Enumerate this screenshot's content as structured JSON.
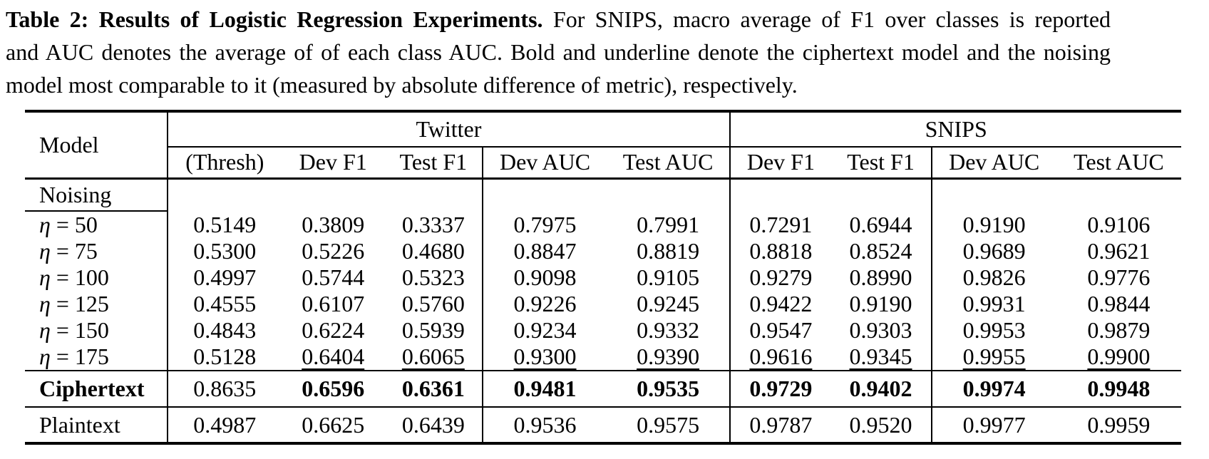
{
  "colors": {
    "text": "#000000",
    "background": "#ffffff",
    "rule": "#000000"
  },
  "caption": {
    "title_bold": "Table 2: Results of Logistic Regression Experiments.",
    "line1_rest": "For SNIPS, macro average of F1 over classes is reported",
    "line2": "and AUC denotes the average of of each class AUC. Bold and underline denote the ciphertext model and the noising",
    "line3": "model most comparable to it (measured by absolute difference of metric), respectively."
  },
  "table": {
    "corner_header": "Model",
    "groups": [
      {
        "label": "Twitter",
        "colspan": 5
      },
      {
        "label": "SNIPS",
        "colspan": 4
      }
    ],
    "columns": [
      "(Thresh)",
      "Dev F1",
      "Test F1",
      "Dev AUC",
      "Test AUC",
      "Dev F1",
      "Test F1",
      "Dev AUC",
      "Test AUC"
    ],
    "section_header": "Noising",
    "rows": [
      {
        "label_math": "η",
        "label_rest": " = 50",
        "values": [
          "0.5149",
          "0.3809",
          "0.3337",
          "0.7975",
          "0.7991",
          "0.7291",
          "0.6944",
          "0.9190",
          "0.9106"
        ]
      },
      {
        "label_math": "η",
        "label_rest": " = 75",
        "values": [
          "0.5300",
          "0.5226",
          "0.4680",
          "0.8847",
          "0.8819",
          "0.8818",
          "0.8524",
          "0.9689",
          "0.9621"
        ]
      },
      {
        "label_math": "η",
        "label_rest": " = 100",
        "values": [
          "0.4997",
          "0.5744",
          "0.5323",
          "0.9098",
          "0.9105",
          "0.9279",
          "0.8990",
          "0.9826",
          "0.9776"
        ]
      },
      {
        "label_math": "η",
        "label_rest": " = 125",
        "values": [
          "0.4555",
          "0.6107",
          "0.5760",
          "0.9226",
          "0.9245",
          "0.9422",
          "0.9190",
          "0.9931",
          "0.9844"
        ]
      },
      {
        "label_math": "η",
        "label_rest": " = 150",
        "values": [
          "0.4843",
          "0.6224",
          "0.5939",
          "0.9234",
          "0.9332",
          "0.9547",
          "0.9303",
          "0.9953",
          "0.9879"
        ]
      },
      {
        "label_math": "η",
        "label_rest": " = 175",
        "values": [
          "0.5128",
          "0.6404",
          "0.6065",
          "0.9300",
          "0.9390",
          "0.9616",
          "0.9345",
          "0.9955",
          "0.9900"
        ],
        "styles": [
          "",
          "u",
          "u",
          "u",
          "u",
          "u",
          "u",
          "u",
          "u"
        ]
      },
      {
        "label": "Ciphertext",
        "bold_label": true,
        "ruled": true,
        "values": [
          "0.8635",
          "0.6596",
          "0.6361",
          "0.9481",
          "0.9535",
          "0.9729",
          "0.9402",
          "0.9974",
          "0.9948"
        ],
        "styles": [
          "",
          "b",
          "b",
          "b",
          "b",
          "b",
          "b",
          "b",
          "b"
        ]
      },
      {
        "label": "Plaintext",
        "ruled": true,
        "values": [
          "0.4987",
          "0.6625",
          "0.6439",
          "0.9536",
          "0.9575",
          "0.9787",
          "0.9520",
          "0.9977",
          "0.9959"
        ]
      }
    ]
  }
}
